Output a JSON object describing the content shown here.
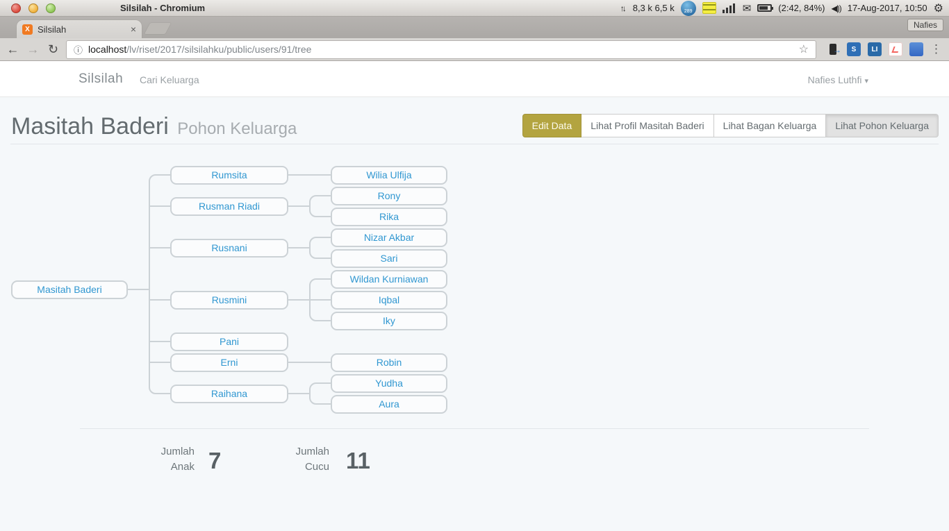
{
  "panel": {
    "window_title": "Silsilah - Chromium",
    "net_rate": "8,3 k 6,5 k",
    "badge_count": "289",
    "battery_status": "(2:42, 84%)",
    "clock": "17-Aug-2017, 10:50",
    "keyboard_tag": "Nafies"
  },
  "browser": {
    "tab_title": "Silsilah",
    "url_host": "localhost",
    "url_path": "/lv/riset/2017/silsilahku/public/users/91/tree"
  },
  "icons": {
    "close": "×",
    "back": "←",
    "forward": "→",
    "reload": "↻",
    "info": "ⓘ",
    "star": "☆",
    "menu": "⋮",
    "caret": "▾",
    "mail": "✉",
    "gear": "⚙",
    "updown": "↑↓",
    "volume": "◀))",
    "phone_arrow": "→",
    "ext_s": "S",
    "ext_li": "LI",
    "favicon_letter": "X"
  },
  "navbar": {
    "brand": "Silsilah",
    "link_cari": "Cari Keluarga",
    "user_menu": "Nafies Luthfi"
  },
  "header": {
    "title": "Masitah Baderi",
    "subtitle": "Pohon Keluarga",
    "buttons": [
      {
        "label": "Edit Data",
        "variant": "olive"
      },
      {
        "label": "Lihat Profil Masitah Baderi",
        "variant": "plain"
      },
      {
        "label": "Lihat Bagan Keluarga",
        "variant": "plain"
      },
      {
        "label": "Lihat Pohon Keluarga",
        "variant": "active"
      }
    ]
  },
  "tree": {
    "root": "Masitah Baderi",
    "children": [
      {
        "name": "Rumsita",
        "children": [
          "Wilia Ulfija"
        ]
      },
      {
        "name": "Rusman Riadi",
        "children": [
          "Rony",
          "Rika"
        ]
      },
      {
        "name": "Rusnani",
        "children": [
          "Nizar Akbar",
          "Sari"
        ]
      },
      {
        "name": "Rusmini",
        "children": [
          "Wildan Kurniawan",
          "Iqbal",
          "Iky"
        ]
      },
      {
        "name": "Pani",
        "children": []
      },
      {
        "name": "Erni",
        "children": [
          "Robin"
        ]
      },
      {
        "name": "Raihana",
        "children": [
          "Yudha",
          "Aura"
        ]
      }
    ]
  },
  "stats": [
    {
      "label_line1": "Jumlah",
      "label_line2": "Anak",
      "value": "7"
    },
    {
      "label_line1": "Jumlah",
      "label_line2": "Cucu",
      "value": "11"
    }
  ],
  "colors": {
    "link_blue": "#3097d1",
    "olive": "#b3a440",
    "page_bg": "#f5f8fa",
    "connector": "#ccd2d6"
  }
}
